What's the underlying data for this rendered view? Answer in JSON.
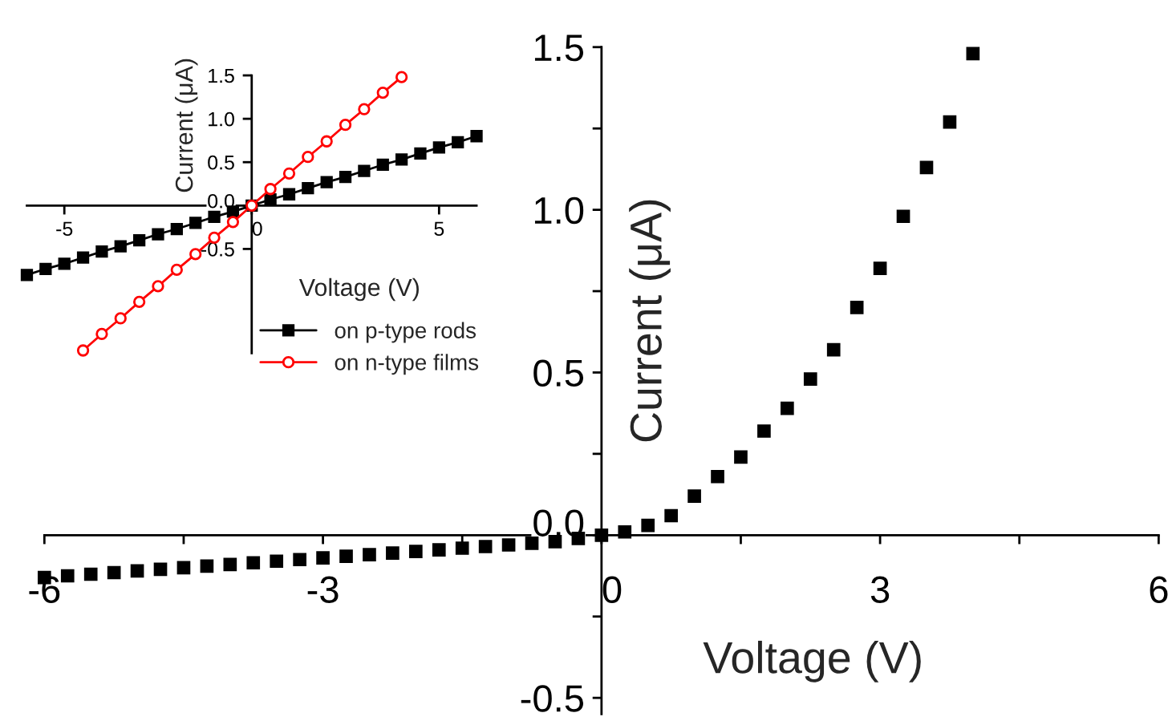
{
  "chart_data": [
    {
      "type": "scatter",
      "xlabel": "Voltage (V)",
      "ylabel": "Current (μA)",
      "marker": "square",
      "xlim": [
        -6,
        6
      ],
      "ylim": [
        -0.55,
        1.5
      ],
      "xticks": [
        {
          "value": -6,
          "label": "-6"
        },
        {
          "value": -4.5,
          "label": null
        },
        {
          "value": -3,
          "label": "-3"
        },
        {
          "value": -1.5,
          "label": null
        },
        {
          "value": 0,
          "label": "0"
        },
        {
          "value": 1.5,
          "label": null
        },
        {
          "value": 3,
          "label": "3"
        },
        {
          "value": 4.5,
          "label": null
        },
        {
          "value": 6,
          "label": "6"
        }
      ],
      "yticks": [
        {
          "value": -0.5,
          "label": "-0.5"
        },
        {
          "value": -0.25,
          "label": null
        },
        {
          "value": 0,
          "label": "0.0"
        },
        {
          "value": 0.25,
          "label": null
        },
        {
          "value": 0.5,
          "label": "0.5"
        },
        {
          "value": 0.75,
          "label": null
        },
        {
          "value": 1.0,
          "label": "1.0"
        },
        {
          "value": 1.25,
          "label": null
        },
        {
          "value": 1.5,
          "label": "1.5"
        }
      ],
      "series": [
        {
          "color": "#000000",
          "x": [
            -6,
            -5.75,
            -5.5,
            -5.25,
            -5,
            -4.75,
            -4.5,
            -4.25,
            -4,
            -3.75,
            -3.5,
            -3.25,
            -3,
            -2.75,
            -2.5,
            -2.25,
            -2,
            -1.75,
            -1.5,
            -1.25,
            -1,
            -0.75,
            -0.5,
            -0.25,
            0,
            0.25,
            0.5,
            0.75,
            1,
            1.25,
            1.5,
            1.75,
            2,
            2.25,
            2.5,
            2.75,
            3,
            3.25,
            3.5,
            3.75,
            4
          ],
          "values": [
            -0.13,
            -0.125,
            -0.12,
            -0.115,
            -0.11,
            -0.105,
            -0.1,
            -0.095,
            -0.09,
            -0.085,
            -0.08,
            -0.075,
            -0.07,
            -0.065,
            -0.06,
            -0.055,
            -0.05,
            -0.045,
            -0.04,
            -0.035,
            -0.03,
            -0.025,
            -0.02,
            -0.01,
            0,
            0.01,
            0.03,
            0.06,
            0.12,
            0.18,
            0.24,
            0.32,
            0.39,
            0.48,
            0.57,
            0.7,
            0.82,
            0.98,
            1.13,
            1.27,
            1.48
          ]
        }
      ]
    },
    {
      "type": "line",
      "xlabel": "Voltage (V)",
      "ylabel": "Current (μA)",
      "legend": "bottom right",
      "xlim": [
        -6,
        6
      ],
      "ylim": [
        -1.7,
        1.5
      ],
      "xticks": [
        {
          "value": -5,
          "label": "-5"
        },
        {
          "value": 0,
          "label": "0"
        },
        {
          "value": 5,
          "label": "5"
        }
      ],
      "yticks": [
        {
          "value": -0.5,
          "label": "-0.5"
        },
        {
          "value": 0,
          "label": "0.0"
        },
        {
          "value": 0.5,
          "label": "0.5"
        },
        {
          "value": 1.0,
          "label": "1.0"
        },
        {
          "value": 1.5,
          "label": "1.5"
        }
      ],
      "series": [
        {
          "name": "on p-type rods",
          "color": "#000000",
          "marker": "square",
          "x": [
            -6,
            -5.5,
            -5,
            -4.5,
            -4,
            -3.5,
            -3,
            -2.5,
            -2,
            -1.5,
            -1,
            -0.5,
            0,
            0.5,
            1,
            1.5,
            2,
            2.5,
            3,
            3.5,
            4,
            4.5,
            5,
            5.5,
            6
          ],
          "values": [
            -0.8,
            -0.73,
            -0.67,
            -0.6,
            -0.53,
            -0.47,
            -0.4,
            -0.33,
            -0.27,
            -0.2,
            -0.13,
            -0.07,
            0,
            0.07,
            0.13,
            0.2,
            0.27,
            0.33,
            0.4,
            0.47,
            0.53,
            0.6,
            0.67,
            0.73,
            0.8
          ]
        },
        {
          "name": "on n-type films",
          "color": "#ff0000",
          "marker": "circle",
          "x": [
            -4.5,
            -4,
            -3.5,
            -3,
            -2.5,
            -2,
            -1.5,
            -1,
            -0.5,
            0,
            0.5,
            1,
            1.5,
            2,
            2.5,
            3,
            3.5,
            4
          ],
          "values": [
            -1.67,
            -1.48,
            -1.3,
            -1.11,
            -0.93,
            -0.74,
            -0.56,
            -0.37,
            -0.19,
            0,
            0.19,
            0.37,
            0.56,
            0.74,
            0.93,
            1.11,
            1.3,
            1.48
          ]
        }
      ]
    }
  ]
}
